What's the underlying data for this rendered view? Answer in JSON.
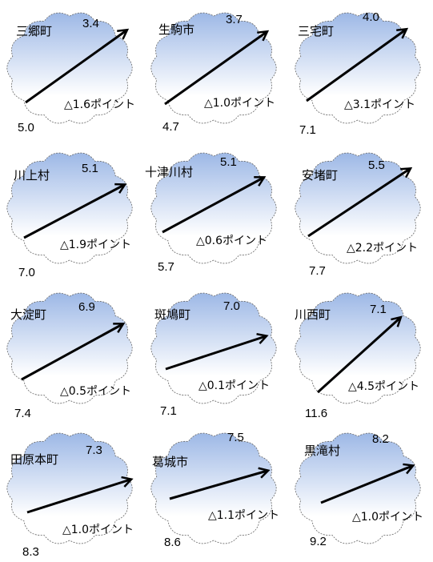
{
  "towns": [
    {
      "name": "三郷町",
      "start": "5.0",
      "end": "3.4",
      "change": "△1.6ポイント"
    },
    {
      "name": "生駒市",
      "start": "4.7",
      "end": "3.7",
      "change": "△1.0ポイント"
    },
    {
      "name": "三宅町",
      "start": "7.1",
      "end": "4.0",
      "change": "△3.1ポイント"
    },
    {
      "name": "川上村",
      "start": "7.0",
      "end": "5.1",
      "change": "△1.9ポイント"
    },
    {
      "name": "十津川村",
      "start": "5.7",
      "end": "5.1",
      "change": "△0.6ポイント"
    },
    {
      "name": "安堵町",
      "start": "7.7",
      "end": "5.5",
      "change": "△2.2ポイント"
    },
    {
      "name": "大淀町",
      "start": "7.4",
      "end": "6.9",
      "change": "△0.5ポイント"
    },
    {
      "name": "斑鳩町",
      "start": "7.1",
      "end": "7.0",
      "change": "△0.1ポイント"
    },
    {
      "name": "川西町",
      "start": "11.6",
      "end": "7.1",
      "change": "△4.5ポイント"
    },
    {
      "name": "田原本町",
      "start": "8.3",
      "end": "7.3",
      "change": "△1.0ポイント"
    },
    {
      "name": "葛城市",
      "start": "8.6",
      "end": "7.5",
      "change": "△1.1ポイント"
    },
    {
      "name": "黒滝村",
      "start": "9.2",
      "end": "8.2",
      "change": "△1.0ポイント"
    }
  ],
  "colors": {
    "cloud_top": "#9db8e6",
    "cloud_bottom": "#ffffff",
    "outline": "#666666",
    "arrow": "#000000"
  }
}
